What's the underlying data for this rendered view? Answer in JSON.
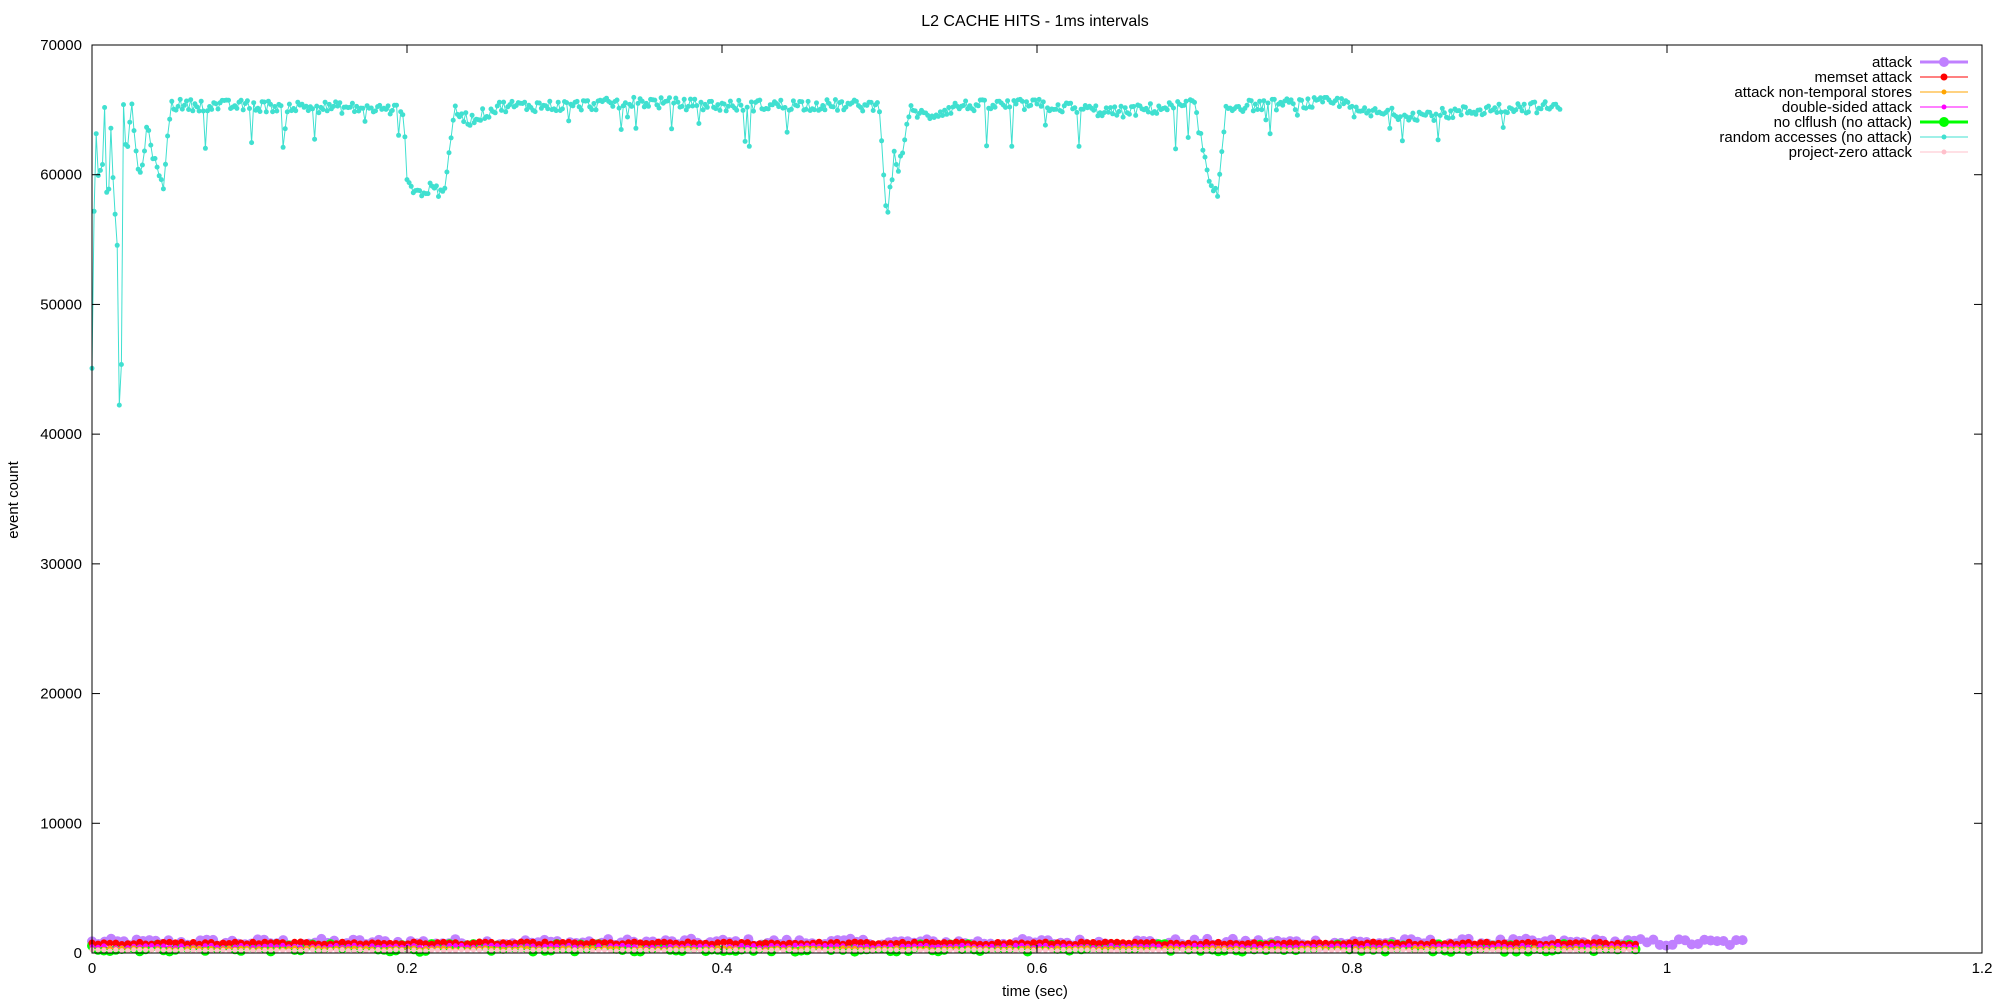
{
  "chart_data": {
    "type": "line",
    "title": "L2 CACHE HITS - 1ms intervals",
    "xlabel": "time (sec)",
    "ylabel": "event count",
    "xlim": [
      0,
      1.2
    ],
    "ylim": [
      0,
      70000
    ],
    "xticks": [
      0,
      0.2,
      0.4,
      0.6,
      0.8,
      1,
      1.2
    ],
    "xtick_labels": [
      "0",
      "0.2",
      "0.4",
      "0.6",
      "0.8",
      "1",
      "1.2"
    ],
    "yticks": [
      0,
      10000,
      20000,
      30000,
      40000,
      50000,
      60000,
      70000
    ],
    "ytick_labels": [
      "0",
      "10000",
      "20000",
      "30000",
      "40000",
      "50000",
      "60000",
      "70000"
    ],
    "grid": false,
    "legend_position": "top-right",
    "series": [
      {
        "name": "attack",
        "color": "#c080ff",
        "marker_size": "large",
        "x_range": [
          0,
          1.048
        ],
        "y_range": [
          500,
          1100
        ]
      },
      {
        "name": "memset attack",
        "color": "#ff0000",
        "marker_size": "medium",
        "x_range": [
          0,
          0.98
        ],
        "y_range": [
          650,
          850
        ]
      },
      {
        "name": "attack non-temporal stores",
        "color": "#ffa500",
        "marker_size": "small",
        "x_range": [
          0,
          0.98
        ],
        "y_range": [
          250,
          400
        ]
      },
      {
        "name": "double-sided attack",
        "color": "#ff00ff",
        "marker_size": "small",
        "x_range": [
          0,
          0.98
        ],
        "y_range": [
          400,
          600
        ]
      },
      {
        "name": "no clflush (no attack)",
        "color": "#00ff00",
        "marker_size": "large",
        "x_range": [
          0,
          0.98
        ],
        "y_range": [
          100,
          700
        ]
      },
      {
        "name": "random accesses (no attack)",
        "color": "#40e0d0",
        "marker_size": "small",
        "x_range": [
          0,
          0.932
        ],
        "x": [
          0,
          0.002,
          0.004,
          0.006,
          0.008,
          0.01,
          0.012,
          0.014,
          0.016,
          0.018,
          0.02,
          0.022,
          0.025,
          0.03,
          0.035,
          0.04,
          0.045,
          0.05,
          0.1,
          0.15,
          0.198,
          0.2,
          0.205,
          0.21,
          0.215,
          0.22,
          0.225,
          0.23,
          0.24,
          0.26,
          0.3,
          0.35,
          0.4,
          0.45,
          0.5,
          0.505,
          0.508,
          0.512,
          0.52,
          0.53,
          0.55,
          0.6,
          0.65,
          0.7,
          0.71,
          0.712,
          0.715,
          0.72,
          0.73,
          0.75,
          0.8,
          0.8,
          0.85,
          0.9,
          0.932
        ],
        "y": [
          45000,
          63200,
          62000,
          59000,
          65500,
          55700,
          64000,
          57400,
          55000,
          35200,
          65000,
          61500,
          65400,
          59500,
          63500,
          61000,
          58800,
          65400,
          65300,
          65200,
          65000,
          59200,
          59000,
          58300,
          59200,
          58700,
          59400,
          65000,
          64200,
          65300,
          65300,
          65600,
          65300,
          65400,
          65300,
          56100,
          62000,
          60500,
          65000,
          64500,
          65300,
          65400,
          64800,
          65400,
          58900,
          58500,
          58500,
          65200,
          65300,
          65400,
          65600,
          64800,
          64600,
          65200,
          65200
        ]
      },
      {
        "name": "project-zero attack",
        "color": "#ffc0cb",
        "marker_size": "small",
        "x_range": [
          0,
          0.98
        ],
        "y_range": [
          150,
          250
        ]
      }
    ]
  }
}
